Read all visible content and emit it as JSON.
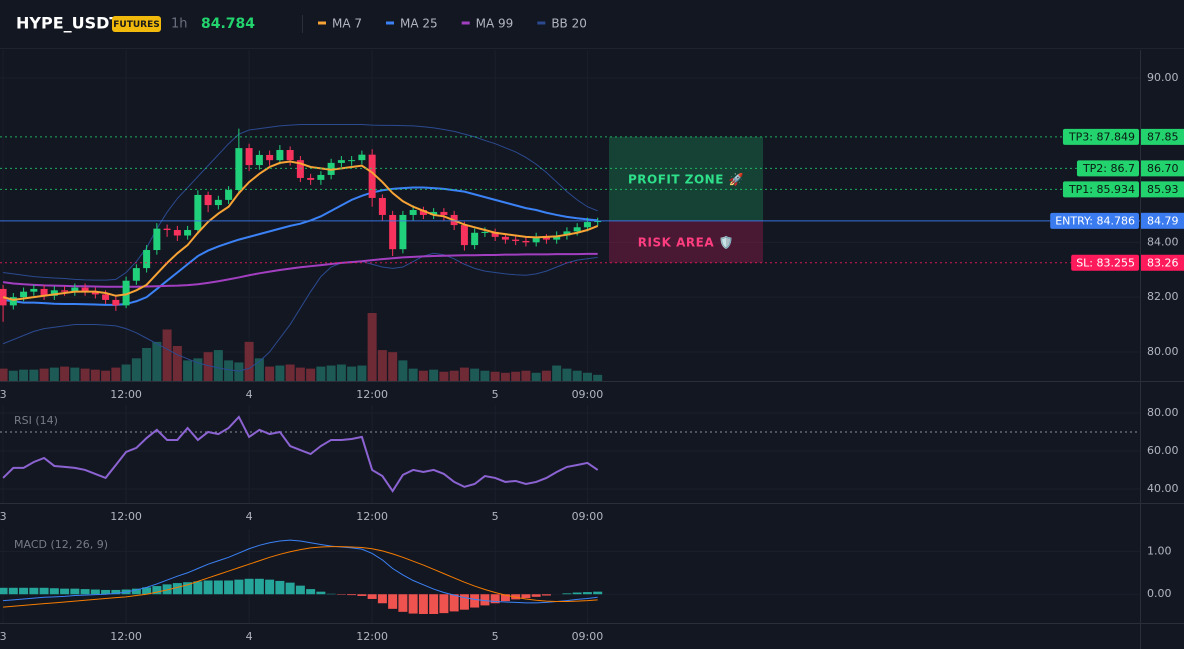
{
  "header": {
    "symbol": "HYPE_USDT",
    "badge": "FUTURES",
    "interval": "1h",
    "price": 84.784
  },
  "time_axis": {
    "xlim": [
      -0.3,
      110.9
    ],
    "xticks": [
      {
        "value": 0,
        "label": "3"
      },
      {
        "value": 12,
        "label": "12:00"
      },
      {
        "value": 24,
        "label": "4"
      },
      {
        "value": 36,
        "label": "12:00"
      },
      {
        "value": 48,
        "label": "5"
      },
      {
        "value": 57,
        "label": "09:00"
      }
    ]
  },
  "chart_data": [
    {
      "type": "candlestick",
      "up_color": "#20d07a",
      "down_color": "#f7325c",
      "volume_up_color": "#1d5a55",
      "volume_down_color": "#6e2a35",
      "open": [
        82.3,
        81.7,
        82.0,
        82.2,
        82.3,
        82.05,
        82.25,
        82.2,
        82.35,
        82.2,
        82.1,
        81.9,
        81.7,
        82.6,
        83.06,
        83.72,
        84.5,
        84.45,
        84.25,
        84.45,
        85.73,
        85.36,
        85.55,
        85.91,
        87.44,
        86.82,
        87.19,
        87.0,
        87.37,
        87.0,
        86.35,
        86.28,
        86.46,
        86.9,
        87.0,
        87.0,
        87.2,
        85.62,
        85.0,
        83.75,
        85.0,
        85.18,
        85.0,
        85.11,
        85.0,
        84.63,
        83.9,
        84.35,
        84.38,
        84.2,
        84.1,
        84.05,
        84.0,
        84.2,
        84.1,
        84.25,
        84.4,
        84.55,
        84.74
      ],
      "high": [
        82.45,
        82.15,
        82.35,
        82.45,
        82.45,
        82.4,
        82.4,
        82.5,
        82.5,
        82.35,
        82.25,
        82.05,
        82.75,
        83.2,
        83.9,
        84.7,
        84.65,
        84.6,
        84.6,
        85.9,
        85.85,
        85.7,
        86.05,
        88.15,
        87.6,
        87.35,
        87.35,
        87.55,
        87.5,
        87.15,
        86.5,
        86.6,
        87.05,
        87.15,
        87.15,
        87.35,
        87.4,
        85.75,
        85.15,
        85.15,
        85.35,
        85.3,
        85.25,
        85.25,
        85.15,
        84.75,
        84.5,
        84.55,
        84.5,
        84.3,
        84.25,
        84.2,
        84.35,
        84.3,
        84.4,
        84.55,
        84.7,
        84.9,
        84.9
      ],
      "low": [
        81.1,
        81.55,
        81.85,
        82.05,
        81.9,
        81.9,
        82.05,
        82.05,
        82.05,
        81.95,
        81.75,
        81.5,
        81.6,
        82.45,
        82.9,
        83.55,
        84.2,
        84.05,
        84.1,
        84.3,
        85.1,
        85.2,
        85.4,
        85.75,
        86.6,
        86.65,
        86.8,
        86.85,
        86.8,
        86.2,
        86.1,
        86.1,
        86.3,
        86.75,
        86.8,
        86.85,
        85.3,
        84.8,
        83.5,
        83.6,
        84.8,
        84.85,
        84.85,
        84.8,
        84.45,
        83.7,
        83.75,
        84.2,
        84.05,
        83.95,
        83.9,
        83.85,
        83.85,
        83.95,
        83.95,
        84.1,
        84.25,
        84.4,
        84.6
      ],
      "close": [
        81.7,
        82.0,
        82.2,
        82.3,
        82.05,
        82.25,
        82.2,
        82.35,
        82.2,
        82.1,
        81.9,
        81.7,
        82.6,
        83.06,
        83.72,
        84.5,
        84.45,
        84.25,
        84.45,
        85.73,
        85.36,
        85.55,
        85.91,
        87.44,
        86.82,
        87.19,
        87.0,
        87.37,
        87.0,
        86.35,
        86.28,
        86.46,
        86.9,
        87.0,
        87.0,
        87.2,
        85.62,
        85.0,
        83.75,
        85.0,
        85.18,
        85.0,
        85.11,
        85.0,
        84.63,
        83.9,
        84.35,
        84.38,
        84.2,
        84.1,
        84.05,
        84.0,
        84.2,
        84.1,
        84.25,
        84.4,
        84.55,
        84.74,
        84.78
      ],
      "volume": [
        12,
        10,
        11,
        11,
        12,
        13,
        14,
        13,
        12,
        11,
        10,
        13,
        16,
        22,
        32,
        38,
        50,
        34,
        20,
        22,
        28,
        30,
        20,
        18,
        38,
        22,
        14,
        15,
        16,
        13,
        12,
        14,
        15,
        16,
        14,
        15,
        66,
        30,
        28,
        20,
        12,
        10,
        11,
        9,
        10,
        13,
        12,
        10,
        9,
        8,
        9,
        10,
        8,
        10,
        15,
        12,
        10,
        8,
        6
      ],
      "series": [
        {
          "name": "MA 7",
          "color": "#f7a335",
          "values": [
            82.0,
            81.9,
            81.95,
            82.0,
            82.05,
            82.1,
            82.15,
            82.2,
            82.2,
            82.2,
            82.15,
            82.05,
            82.1,
            82.25,
            82.45,
            82.85,
            83.25,
            83.6,
            83.9,
            84.35,
            84.75,
            85.05,
            85.3,
            85.8,
            86.2,
            86.5,
            86.75,
            86.9,
            86.95,
            86.88,
            86.75,
            86.7,
            86.65,
            86.7,
            86.75,
            86.8,
            86.55,
            86.2,
            85.8,
            85.5,
            85.3,
            85.15,
            85.0,
            84.95,
            84.8,
            84.65,
            84.55,
            84.45,
            84.35,
            84.3,
            84.25,
            84.2,
            84.18,
            84.2,
            84.22,
            84.28,
            84.35,
            84.45,
            84.6
          ]
        },
        {
          "name": "MA 25",
          "color": "#3b82f6",
          "values": [
            81.9,
            81.85,
            81.8,
            81.8,
            81.78,
            81.76,
            81.75,
            81.75,
            81.74,
            81.73,
            81.72,
            81.72,
            81.75,
            81.85,
            82.0,
            82.3,
            82.6,
            82.9,
            83.2,
            83.5,
            83.7,
            83.85,
            83.98,
            84.1,
            84.2,
            84.3,
            84.4,
            84.5,
            84.6,
            84.68,
            84.8,
            84.95,
            85.15,
            85.35,
            85.55,
            85.7,
            85.82,
            85.9,
            85.95,
            85.98,
            86.0,
            86.0,
            85.98,
            85.95,
            85.9,
            85.85,
            85.75,
            85.65,
            85.55,
            85.45,
            85.35,
            85.25,
            85.18,
            85.08,
            85.0,
            84.93,
            84.88,
            84.84,
            84.8
          ]
        },
        {
          "name": "MA 99",
          "color": "#a23fc0",
          "values": [
            82.55,
            82.5,
            82.47,
            82.45,
            82.43,
            82.42,
            82.41,
            82.4,
            82.4,
            82.39,
            82.38,
            82.38,
            82.38,
            82.38,
            82.39,
            82.4,
            82.41,
            82.42,
            82.44,
            82.47,
            82.52,
            82.58,
            82.65,
            82.72,
            82.8,
            82.87,
            82.93,
            82.99,
            83.04,
            83.09,
            83.13,
            83.17,
            83.21,
            83.25,
            83.28,
            83.31,
            83.35,
            83.39,
            83.42,
            83.45,
            83.47,
            83.49,
            83.5,
            83.51,
            83.52,
            83.53,
            83.53,
            83.54,
            83.54,
            83.55,
            83.55,
            83.56,
            83.56,
            83.56,
            83.57,
            83.57,
            83.57,
            83.58,
            83.58
          ]
        },
        {
          "name": "BB 20",
          "color": "#2b4a8f",
          "upper": [
            82.9,
            82.85,
            82.8,
            82.75,
            82.72,
            82.7,
            82.68,
            82.65,
            82.63,
            82.62,
            82.62,
            82.65,
            82.9,
            83.3,
            83.8,
            84.5,
            85.1,
            85.6,
            86.0,
            86.4,
            86.8,
            87.2,
            87.6,
            87.95,
            88.1,
            88.15,
            88.2,
            88.25,
            88.28,
            88.3,
            88.3,
            88.3,
            88.3,
            88.3,
            88.3,
            88.3,
            88.28,
            88.27,
            88.27,
            88.26,
            88.25,
            88.22,
            88.18,
            88.12,
            88.05,
            87.95,
            87.85,
            87.72,
            87.6,
            87.45,
            87.3,
            87.1,
            86.85,
            86.55,
            86.2,
            85.85,
            85.55,
            85.3,
            85.15
          ],
          "lower": [
            80.3,
            80.45,
            80.6,
            80.75,
            80.85,
            80.9,
            80.95,
            81.0,
            81.0,
            81.0,
            80.98,
            80.95,
            80.85,
            80.7,
            80.5,
            80.3,
            80.1,
            79.9,
            79.75,
            79.6,
            79.5,
            79.42,
            79.35,
            79.3,
            79.4,
            79.65,
            80.0,
            80.5,
            81.0,
            81.6,
            82.2,
            82.75,
            83.1,
            83.25,
            83.3,
            83.3,
            83.2,
            83.1,
            83.05,
            83.1,
            83.3,
            83.5,
            83.6,
            83.55,
            83.4,
            83.2,
            83.05,
            82.95,
            82.9,
            82.85,
            82.82,
            82.8,
            82.85,
            82.95,
            83.1,
            83.25,
            83.35,
            83.4,
            83.45
          ]
        }
      ],
      "ylim": [
        78.94,
        91.02
      ],
      "yticks": [
        {
          "value": 80,
          "label": "80.00"
        },
        {
          "value": 82,
          "label": "82.00"
        },
        {
          "value": 84,
          "label": "84.00"
        },
        {
          "value": 90,
          "label": "90.00"
        }
      ],
      "levels": [
        {
          "value": 87.849,
          "label": "TP3: 87.849",
          "axis_label": "87.85",
          "color": "#22d36e",
          "text_color": "#0b1a12",
          "dashed": true
        },
        {
          "value": 86.7,
          "label": "TP2: 86.7",
          "axis_label": "86.70",
          "color": "#22d36e",
          "text_color": "#0b1a12",
          "dashed": true
        },
        {
          "value": 85.934,
          "label": "TP1: 85.934",
          "axis_label": "85.93",
          "color": "#22d36e",
          "text_color": "#0b1a12",
          "dashed": true
        },
        {
          "value": 84.786,
          "label": "ENTRY: 84.786",
          "axis_label": "84.79",
          "color": "#3b7bf0",
          "text_color": "#ffffff",
          "dashed": false
        },
        {
          "value": 83.255,
          "label": "SL: 83.255",
          "axis_label": "83.26",
          "color": "#ff1a5c",
          "text_color": "#ffffff",
          "dashed": true
        }
      ],
      "zones": [
        {
          "label": "PROFIT ZONE 🚀",
          "range": [
            84.786,
            87.849
          ],
          "color": "#1fb56a",
          "text_color": "#2ee08a"
        },
        {
          "label": "RISK AREA 🛡️",
          "range": [
            83.255,
            84.786
          ],
          "color": "#d81b60",
          "text_color": "#ff3d7f"
        }
      ]
    },
    {
      "type": "line",
      "title": "RSI (14)",
      "color": "#8c63d2",
      "level": 70,
      "values": [
        45.8,
        51.1,
        51.1,
        54.2,
        56.3,
        52.1,
        51.6,
        51.1,
        50,
        47.9,
        45.8,
        52.6,
        59.5,
        61.6,
        66.8,
        71.1,
        65.8,
        65.8,
        72.1,
        65.8,
        70,
        68.9,
        72.1,
        77.9,
        67.4,
        71.1,
        68.9,
        70,
        62.6,
        60.5,
        58.4,
        62.6,
        65.8,
        65.8,
        66.3,
        67.4,
        50,
        46.8,
        38.9,
        47.4,
        50,
        48.9,
        50,
        47.9,
        43.7,
        41.1,
        42.6,
        46.8,
        45.8,
        43.7,
        44.2,
        42.6,
        43.7,
        45.8,
        48.9,
        51.6,
        52.6,
        53.7,
        50
      ],
      "ylim": [
        32.6,
        84.2
      ],
      "yticks": [
        {
          "value": 80,
          "label": "80.00"
        },
        {
          "value": 60,
          "label": "60.00"
        },
        {
          "value": 40,
          "label": "40.00"
        }
      ]
    },
    {
      "type": "macd",
      "title": "MACD (12, 26, 9)",
      "macd": {
        "color": "#3b82f6",
        "values": [
          -0.15,
          -0.13,
          -0.11,
          -0.09,
          -0.07,
          -0.06,
          -0.05,
          -0.03,
          -0.02,
          -0.01,
          0.0,
          0.02,
          0.05,
          0.1,
          0.16,
          0.24,
          0.33,
          0.42,
          0.5,
          0.6,
          0.7,
          0.78,
          0.86,
          0.96,
          1.06,
          1.14,
          1.2,
          1.24,
          1.26,
          1.24,
          1.2,
          1.16,
          1.12,
          1.1,
          1.08,
          1.05,
          0.95,
          0.8,
          0.6,
          0.45,
          0.32,
          0.22,
          0.12,
          0.04,
          -0.02,
          -0.08,
          -0.12,
          -0.15,
          -0.17,
          -0.18,
          -0.19,
          -0.2,
          -0.2,
          -0.19,
          -0.17,
          -0.15,
          -0.12,
          -0.1,
          -0.07
        ]
      },
      "signal": {
        "color": "#f57c00",
        "values": [
          -0.3,
          -0.28,
          -0.26,
          -0.24,
          -0.22,
          -0.2,
          -0.18,
          -0.16,
          -0.14,
          -0.12,
          -0.1,
          -0.08,
          -0.06,
          -0.03,
          0.0,
          0.05,
          0.1,
          0.16,
          0.22,
          0.3,
          0.38,
          0.46,
          0.54,
          0.62,
          0.7,
          0.78,
          0.86,
          0.93,
          0.99,
          1.04,
          1.08,
          1.1,
          1.11,
          1.11,
          1.1,
          1.09,
          1.06,
          1.01,
          0.94,
          0.86,
          0.77,
          0.68,
          0.58,
          0.48,
          0.38,
          0.28,
          0.19,
          0.11,
          0.04,
          -0.02,
          -0.07,
          -0.11,
          -0.14,
          -0.16,
          -0.17,
          -0.17,
          -0.16,
          -0.15,
          -0.13
        ]
      },
      "histogram": {
        "up_color": "#26a69a",
        "down_color": "#ef5350",
        "values": [
          0.15,
          0.15,
          0.15,
          0.15,
          0.15,
          0.14,
          0.13,
          0.13,
          0.12,
          0.11,
          0.1,
          0.1,
          0.11,
          0.13,
          0.16,
          0.19,
          0.23,
          0.26,
          0.28,
          0.3,
          0.32,
          0.32,
          0.32,
          0.34,
          0.36,
          0.36,
          0.34,
          0.31,
          0.27,
          0.2,
          0.12,
          0.06,
          0.01,
          -0.01,
          -0.02,
          -0.04,
          -0.11,
          -0.21,
          -0.34,
          -0.41,
          -0.45,
          -0.46,
          -0.46,
          -0.44,
          -0.4,
          -0.36,
          -0.31,
          -0.26,
          -0.21,
          -0.16,
          -0.12,
          -0.09,
          -0.06,
          -0.03,
          0.0,
          0.02,
          0.04,
          0.05,
          0.06
        ]
      },
      "ylim": [
        -0.67,
        1.52
      ],
      "yticks": [
        {
          "value": 1,
          "label": "1.00"
        },
        {
          "value": 0,
          "label": "0.00"
        }
      ]
    }
  ]
}
